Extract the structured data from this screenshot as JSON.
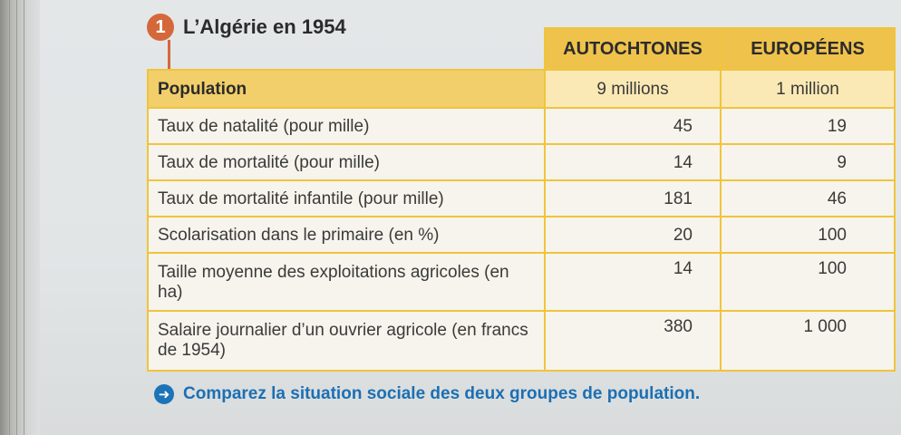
{
  "figure": {
    "number": "1",
    "title": "L’Algérie en 1954"
  },
  "table": {
    "columns": [
      "AUTOCHTONES",
      "EUROPÉENS"
    ],
    "population": {
      "label": "Population",
      "autochtones": "9 millions",
      "europeens": "1 million"
    },
    "rows": [
      {
        "label": "Taux de natalité (pour mille)",
        "autochtones": "45",
        "europeens": "19"
      },
      {
        "label": "Taux de mortalité (pour mille)",
        "autochtones": "14",
        "europeens": "9"
      },
      {
        "label": "Taux de mortalité infantile (pour mille)",
        "autochtones": "181",
        "europeens": "46"
      },
      {
        "label": "Scolarisation dans le primaire (en %)",
        "autochtones": "20",
        "europeens": "100"
      },
      {
        "label": "Taille moyenne des exploitations agricoles (en ha)",
        "autochtones": "14",
        "europeens": "100"
      },
      {
        "label": "Salaire journalier d’un ouvrier agricole (en francs de 1954)",
        "autochtones": "380",
        "europeens": "1 000"
      }
    ]
  },
  "prompt": {
    "icon": "arrow-right-icon",
    "text": "Comparez la situation sociale des deux groupes de population."
  },
  "colors": {
    "badge": "#d5683a",
    "header": "#efc24c",
    "border": "#f0c43d",
    "prompt": "#1c6fb3"
  }
}
